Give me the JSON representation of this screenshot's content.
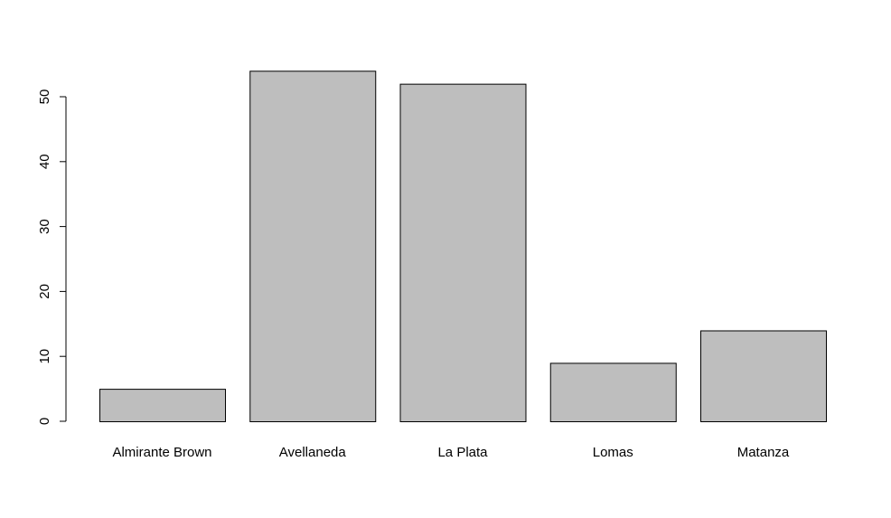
{
  "chart_data": {
    "type": "bar",
    "title": "",
    "xlabel": "",
    "ylabel": "",
    "categories": [
      "Almirante Brown",
      "Avellaneda",
      "La Plata",
      "Lomas",
      "Matanza"
    ],
    "values": [
      5,
      54,
      52,
      9,
      14
    ],
    "ylim": [
      0,
      54
    ],
    "yticks": [
      "0",
      "10",
      "20",
      "30",
      "40",
      "50"
    ],
    "grid": false,
    "legend": "none",
    "bar_fill": "#bebebe",
    "bar_stroke": "#000000"
  }
}
